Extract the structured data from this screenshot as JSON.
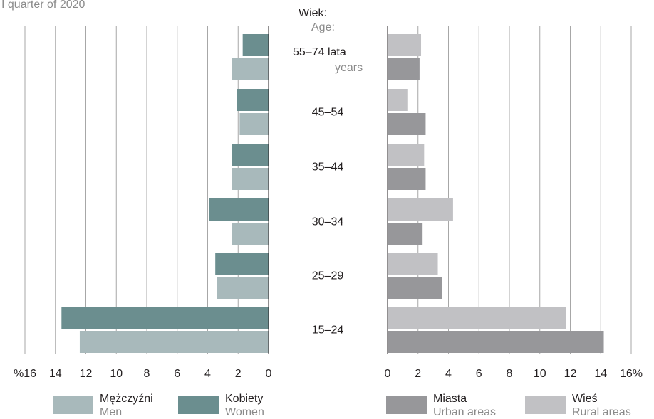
{
  "subtitle": "I quarter of 2020",
  "age_header": {
    "pl": "Wiek:",
    "en": "Age:"
  },
  "colors": {
    "men": "#a8b9bb",
    "women": "#6b8e8f",
    "urban": "#97979a",
    "rural": "#c1c1c4",
    "grid": "#a7a7a7"
  },
  "chart_data": [
    {
      "type": "bar",
      "orientation": "horizontal",
      "direction": "right-to-left",
      "categories": [
        "55–74 lata years",
        "45–54",
        "35–44",
        "30–34",
        "25–29",
        "15–24"
      ],
      "category_labels": [
        {
          "pl": "55–74 lata",
          "en": "years"
        },
        {
          "pl": "45–54",
          "en": ""
        },
        {
          "pl": "35–44",
          "en": ""
        },
        {
          "pl": "30–34",
          "en": ""
        },
        {
          "pl": "25–29",
          "en": ""
        },
        {
          "pl": "15–24",
          "en": ""
        }
      ],
      "series": [
        {
          "name": "Kobiety / Women",
          "values": [
            1.7,
            2.1,
            2.4,
            3.9,
            3.5,
            13.6
          ]
        },
        {
          "name": "Mężczyźni / Men",
          "values": [
            2.4,
            1.9,
            2.4,
            2.4,
            3.4,
            12.4
          ]
        }
      ],
      "xlim": [
        0,
        16
      ],
      "ticks": [
        "%16",
        "14",
        "12",
        "10",
        "8",
        "6",
        "4",
        "2",
        "0"
      ],
      "grid": true,
      "legend": [
        {
          "pl": "Mężczyźni",
          "en": "Men",
          "color": "#a8b9bb"
        },
        {
          "pl": "Kobiety",
          "en": "Women",
          "color": "#6b8e8f"
        }
      ]
    },
    {
      "type": "bar",
      "orientation": "horizontal",
      "direction": "left-to-right",
      "categories": [
        "55–74 lata years",
        "45–54",
        "35–44",
        "30–34",
        "25–29",
        "15–24"
      ],
      "series": [
        {
          "name": "Wieś / Rural areas",
          "values": [
            2.2,
            1.3,
            2.4,
            4.3,
            3.3,
            11.7
          ]
        },
        {
          "name": "Miasta / Urban areas",
          "values": [
            2.1,
            2.5,
            2.5,
            2.3,
            3.6,
            14.2
          ]
        }
      ],
      "xlim": [
        0,
        16
      ],
      "ticks": [
        "0",
        "2",
        "4",
        "6",
        "8",
        "10",
        "12",
        "14",
        "16%"
      ],
      "grid": true,
      "legend": [
        {
          "pl": "Miasta",
          "en": "Urban areas",
          "color": "#97979a"
        },
        {
          "pl": "Wieś",
          "en": "Rural areas",
          "color": "#c1c1c4"
        }
      ]
    }
  ]
}
